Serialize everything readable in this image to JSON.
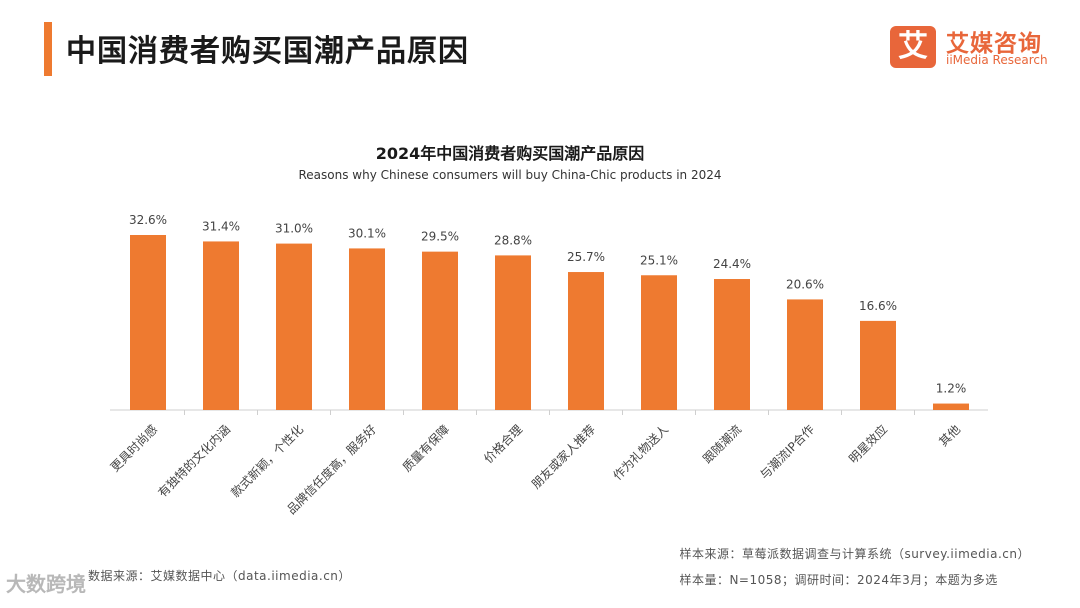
{
  "header": {
    "title": "中国消费者购买国潮产品原因",
    "accent_color": "#EE7A30"
  },
  "logo": {
    "mark": "艾",
    "name_cn": "艾媒咨询",
    "name_en": "iiMedia Research",
    "color": "#E8663A"
  },
  "chart_data": {
    "type": "bar",
    "title": "2024年中国消费者购买国潮产品原因",
    "subtitle": "Reasons why Chinese consumers will buy China-Chic products in 2024",
    "categories": [
      "更具时尚感",
      "有独特的文化内涵",
      "款式新颖，个性化",
      "品牌信任度高，服务好",
      "质量有保障",
      "价格合理",
      "朋友或家人推荐",
      "作为礼物送人",
      "跟随潮流",
      "与潮流IP合作",
      "明星效应",
      "其他"
    ],
    "values": [
      32.6,
      31.4,
      31.0,
      30.1,
      29.5,
      28.8,
      25.7,
      25.1,
      24.4,
      20.6,
      16.6,
      1.2
    ],
    "value_labels": [
      "32.6%",
      "31.4%",
      "31.0%",
      "30.1%",
      "29.5%",
      "28.8%",
      "25.7%",
      "25.1%",
      "24.4%",
      "20.6%",
      "16.6%",
      "1.2%"
    ],
    "ylim": [
      0,
      32.6
    ],
    "bar_color": "#EE7A30",
    "grid": false,
    "legend": "none"
  },
  "footer": {
    "data_source": "数据来源：艾媒数据中心（data.iimedia.cn）",
    "sample_source": "样本来源：草莓派数据调查与计算系统（survey.iimedia.cn）",
    "sample_info": "样本量：N=1058；调研时间：2024年3月；本题为多选"
  },
  "watermark": {
    "text": "大数跨境"
  }
}
